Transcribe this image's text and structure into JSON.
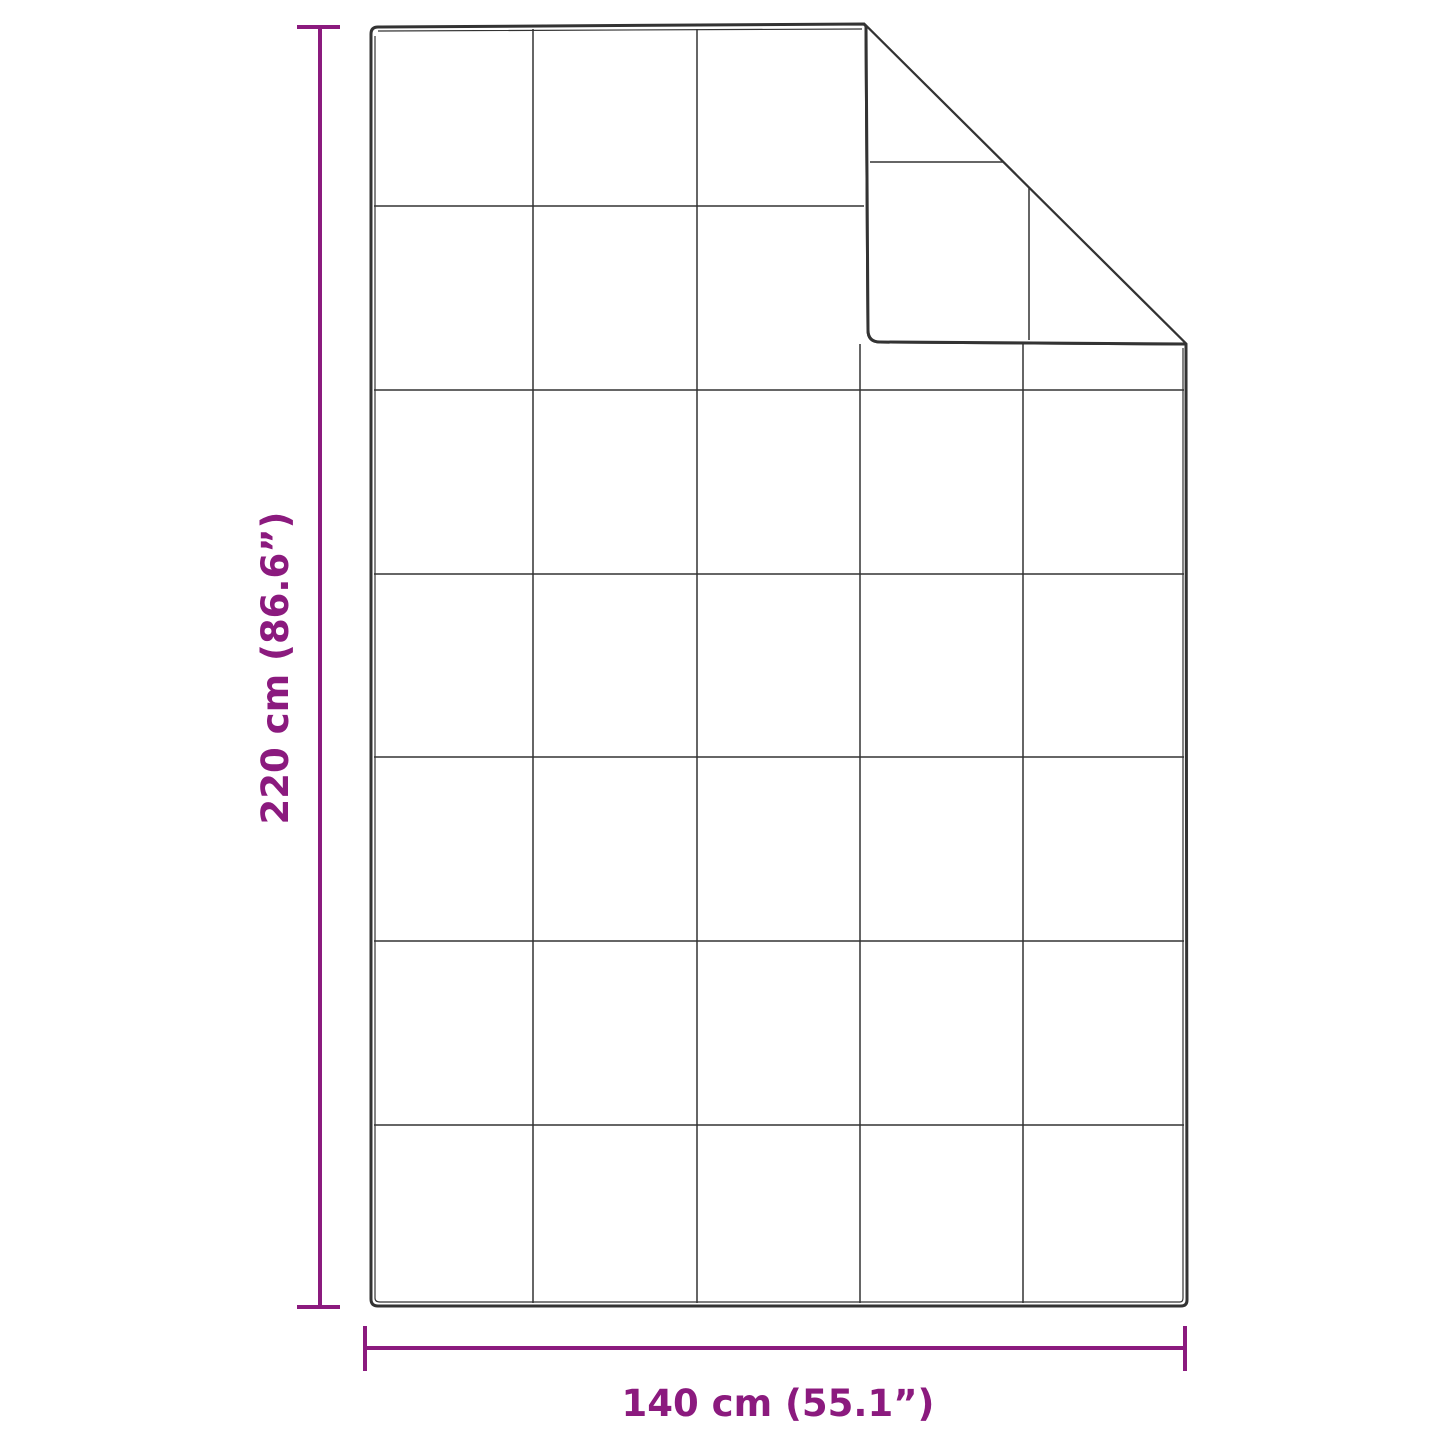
{
  "dimensions": {
    "height_label": "220 cm (86.6”)",
    "width_label": "140 cm (55.1”)"
  },
  "colors": {
    "accent": "#8b1a7e",
    "outline": "#333333"
  },
  "blanket": {
    "columns": 5,
    "rows": 7,
    "folded_corner": "top-right"
  }
}
